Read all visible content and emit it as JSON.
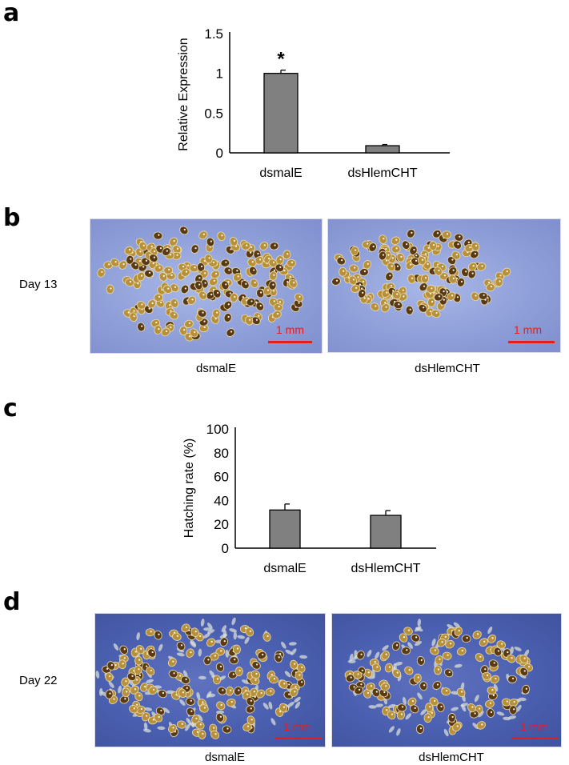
{
  "panels": {
    "a": {
      "letter": "a",
      "chart_data": {
        "type": "bar",
        "categories": [
          "dsmalE",
          "dsHlemCHT"
        ],
        "values": [
          1.0,
          0.09
        ],
        "errors": [
          0.04,
          0.015
        ],
        "ylabel": "Relative Expression",
        "xlabel": "",
        "ylim": [
          0,
          1.5
        ],
        "yticks": [
          "0",
          "0.5",
          "1",
          "1.5"
        ],
        "significance": [
          "*",
          ""
        ],
        "bar_color": "#808080"
      }
    },
    "b": {
      "letter": "b",
      "day_label": "Day 13",
      "photos": [
        {
          "caption": "dsmalE",
          "scale_label": "1 mm"
        },
        {
          "caption": "dsHlemCHT",
          "scale_label": "1 mm"
        }
      ]
    },
    "c": {
      "letter": "c",
      "chart_data": {
        "type": "bar",
        "categories": [
          "dsmalE",
          "dsHlemCHT"
        ],
        "values": [
          32,
          27.5
        ],
        "errors": [
          5,
          4
        ],
        "ylabel": "Hatching rate (%)",
        "xlabel": "",
        "ylim": [
          0,
          100
        ],
        "yticks": [
          "0",
          "20",
          "40",
          "60",
          "80",
          "100"
        ],
        "bar_color": "#808080"
      }
    },
    "d": {
      "letter": "d",
      "day_label": "Day 22",
      "photos": [
        {
          "caption": "dsmalE",
          "scale_label": "1 mm"
        },
        {
          "caption": "dsHlemCHT",
          "scale_label": "1 mm"
        }
      ]
    }
  },
  "colors": {
    "scale_bar": "#e0201f",
    "bar_fill": "#808080",
    "egg": "#b8903a",
    "egg_dark": "#5a3a14"
  }
}
